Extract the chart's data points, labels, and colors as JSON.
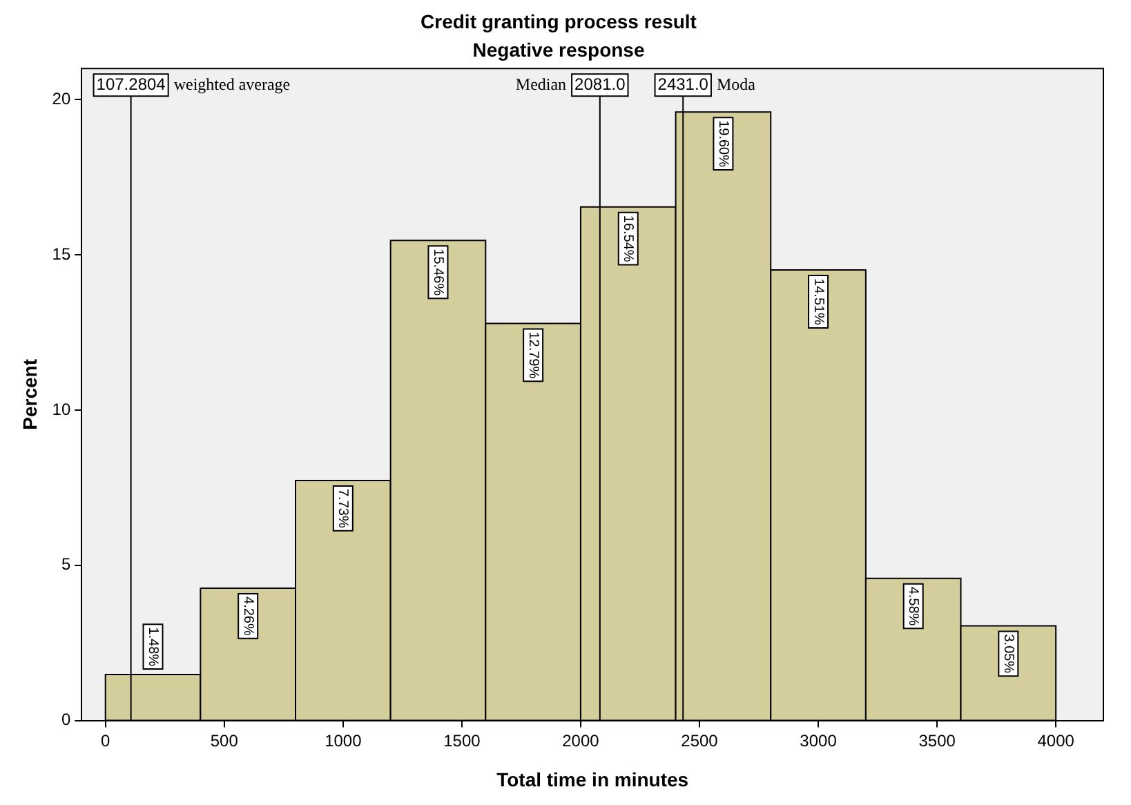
{
  "chart_data": {
    "type": "histogram",
    "title": "Credit granting process result",
    "subtitle": "Negative response",
    "xlabel": "Total time in minutes",
    "ylabel": "Percent",
    "bins": [
      0,
      400,
      800,
      1200,
      1600,
      2000,
      2400,
      2800,
      3200,
      3600,
      4000
    ],
    "values": [
      1.48,
      4.26,
      7.73,
      15.46,
      12.79,
      16.54,
      19.6,
      14.51,
      4.58,
      3.05
    ],
    "value_labels": [
      "1.48%",
      "4.26%",
      "7.73%",
      "15.46%",
      "12.79%",
      "16.54%",
      "19.60%",
      "14.51%",
      "4.58%",
      "3.05%"
    ],
    "color": "#d3ce9c",
    "xlim": [
      -100,
      4200
    ],
    "xticks": [
      0,
      500,
      1000,
      1500,
      2000,
      2500,
      3000,
      3500,
      4000
    ],
    "ylim": [
      0,
      21
    ],
    "yticks": [
      0,
      5,
      10,
      15,
      20
    ],
    "grid": false,
    "ref_lines": [
      {
        "axis": "x",
        "value": 107.2804,
        "label": "107.2804"
      },
      {
        "axis": "x",
        "value": 2081.0,
        "label": "2081.0"
      },
      {
        "axis": "x",
        "value": 2431.0,
        "label": "2431.0"
      }
    ],
    "annotations": [
      "weighted average",
      "Median",
      "Moda"
    ]
  }
}
